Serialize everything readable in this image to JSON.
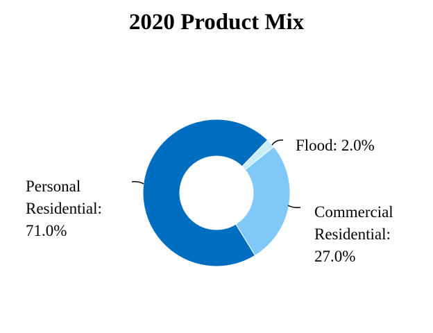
{
  "chart_data": {
    "type": "donut",
    "title": "2020 Product Mix",
    "categories": [
      "Flood",
      "Commercial Residential",
      "Personal Residential"
    ],
    "values": [
      2,
      27,
      71
    ],
    "labels": [
      "Flood: 2.0%",
      "Commercial Residential: 27.0%",
      "Personal Residential: 71.0%"
    ],
    "colors": [
      "#c9ecfb",
      "#80c8f8",
      "#006ec0"
    ]
  }
}
